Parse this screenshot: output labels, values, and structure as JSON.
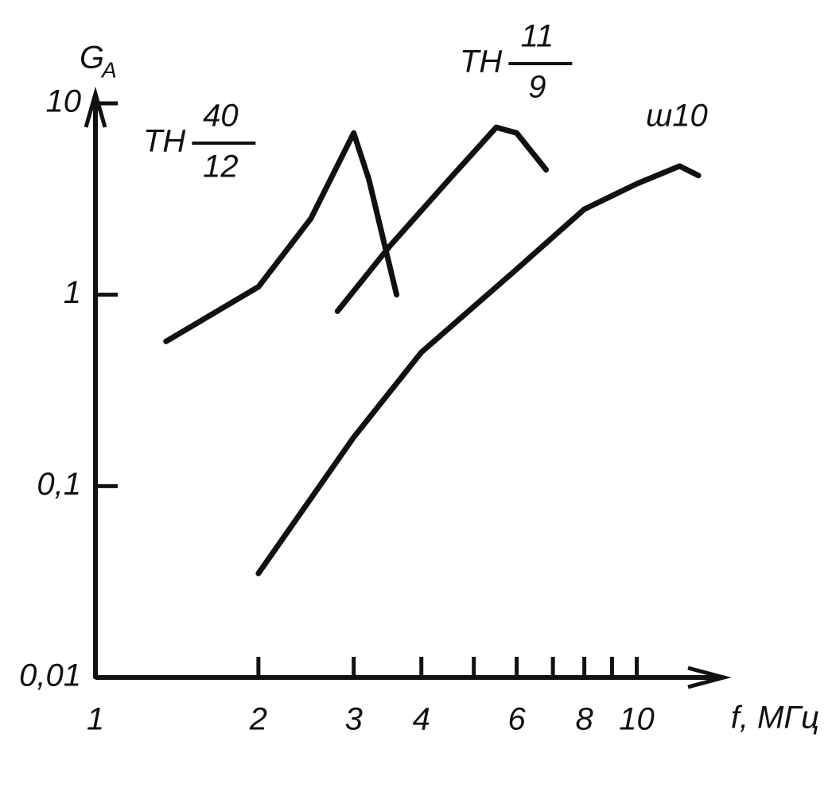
{
  "chart_data": {
    "type": "line",
    "y_label": "G",
    "y_label_sub": "A",
    "x_label": "f, МГц",
    "log_x": true,
    "log_y": true,
    "color": "#111111",
    "xlim": [
      1,
      14
    ],
    "ylim": [
      0.01,
      10
    ],
    "xticks": [
      1,
      2,
      3,
      4,
      6,
      8,
      10
    ],
    "xminorticks": [
      5,
      7,
      9
    ],
    "yticks": [
      {
        "value": 0.01,
        "label": "0,01"
      },
      {
        "value": 0.1,
        "label": "0,1"
      },
      1,
      10
    ],
    "series": [
      {
        "name": "ТН",
        "name_num": "40",
        "name_den": "12",
        "color": "#111111",
        "x": [
          1.35,
          2,
          2.5,
          3,
          3.2,
          3.6
        ],
        "values": [
          0.57,
          1.1,
          2.5,
          7,
          4,
          1
        ]
      },
      {
        "name": "ТН",
        "name_num": "11",
        "name_den": "9",
        "color": "#111111",
        "x": [
          2.8,
          3.5,
          4.5,
          5.5,
          6,
          6.8
        ],
        "values": [
          0.82,
          1.8,
          4,
          7.5,
          7,
          4.5
        ]
      },
      {
        "name": "ш10",
        "color": "#111111",
        "x": [
          2,
          3,
          4,
          6,
          8,
          10,
          12,
          13
        ],
        "values": [
          0.035,
          0.18,
          0.5,
          1.36,
          2.8,
          3.8,
          4.7,
          4.2
        ]
      }
    ]
  }
}
